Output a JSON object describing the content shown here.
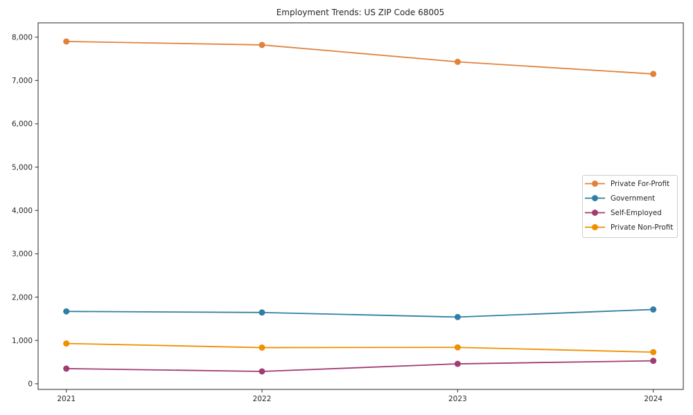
{
  "page": {
    "background": "#ffffff",
    "text_color": "#262626"
  },
  "chart_data": {
    "type": "line",
    "title": "Employment Trends: US ZIP Code 68005",
    "xlabel": "",
    "ylabel": "",
    "categories": [
      "2021",
      "2022",
      "2023",
      "2024"
    ],
    "x": [
      2021,
      2022,
      2023,
      2024
    ],
    "series": [
      {
        "name": "Private For-Profit",
        "color": "#E0823C",
        "values": [
          7900,
          7820,
          7430,
          7150
        ]
      },
      {
        "name": "Government",
        "color": "#2E7FA3",
        "values": [
          1670,
          1645,
          1540,
          1715
        ]
      },
      {
        "name": "Self-Employed",
        "color": "#A23B72",
        "values": [
          350,
          285,
          460,
          530
        ]
      },
      {
        "name": "Private Non-Profit",
        "color": "#F18F01",
        "values": [
          930,
          835,
          840,
          730
        ]
      }
    ],
    "yticks": [
      0,
      1000,
      2000,
      3000,
      4000,
      5000,
      6000,
      7000,
      8000
    ],
    "ylim": [
      -130,
      8330
    ],
    "grid": false,
    "marker": "circle",
    "legend_position": "right-middle",
    "legend_border_color": "#cccccc",
    "axis_color": "#262626"
  }
}
